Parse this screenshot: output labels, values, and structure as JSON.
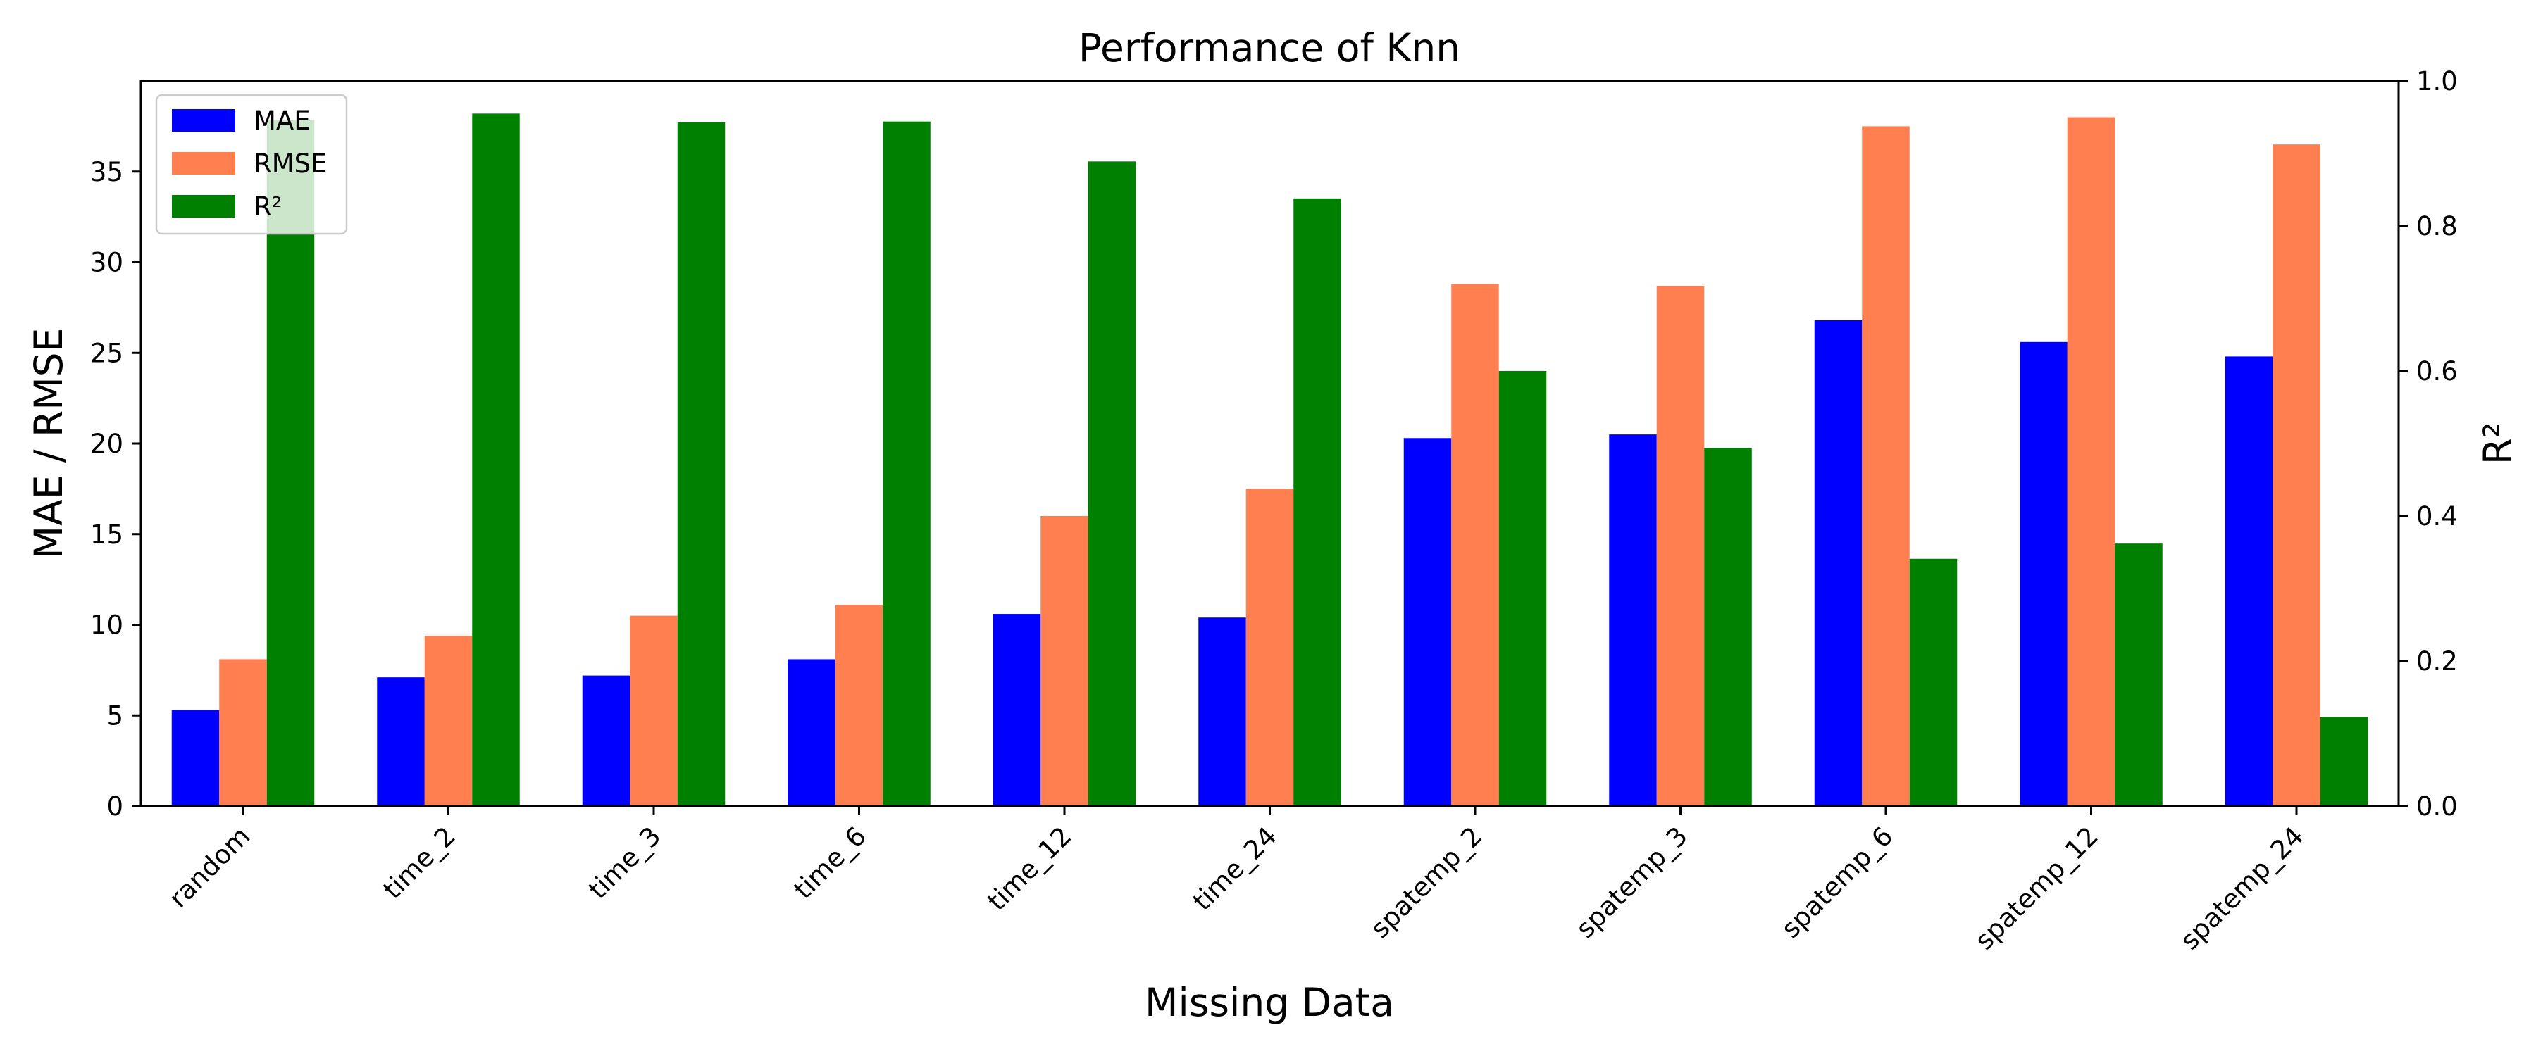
{
  "chart_data": {
    "type": "bar",
    "title": "Performance of Knn",
    "xlabel": "Missing Data",
    "ylabel": "MAE / RMSE",
    "ylabel_right": "R²",
    "categories": [
      "random",
      "time_2",
      "time_3",
      "time_6",
      "time_12",
      "time_24",
      "spatemp_2",
      "spatemp_3",
      "spatemp_6",
      "spatemp_12",
      "spatemp_24"
    ],
    "ylim": [
      0,
      40
    ],
    "yticks": [
      0,
      5,
      10,
      15,
      20,
      25,
      30,
      35
    ],
    "ylim_right": [
      0,
      1.0
    ],
    "yticks_right": [
      "0.0",
      "0.2",
      "0.4",
      "0.6",
      "0.8",
      "1.0"
    ],
    "legend_position": "upper left",
    "grid": false,
    "series": [
      {
        "name": "MAE",
        "axis": "left",
        "color": "#0000ff",
        "values": [
          5.3,
          7.1,
          7.2,
          8.1,
          10.6,
          10.4,
          20.3,
          20.5,
          26.8,
          25.6,
          24.8
        ]
      },
      {
        "name": "RMSE",
        "axis": "left",
        "color": "#ff7f50",
        "values": [
          8.1,
          9.4,
          10.5,
          11.1,
          16.0,
          17.5,
          28.8,
          28.7,
          37.5,
          38.0,
          36.5
        ]
      },
      {
        "name": "R²",
        "axis": "right",
        "color": "#008000",
        "values": [
          0.946,
          0.955,
          0.943,
          0.944,
          0.889,
          0.838,
          0.6,
          0.494,
          0.341,
          0.362,
          0.123
        ]
      }
    ]
  }
}
